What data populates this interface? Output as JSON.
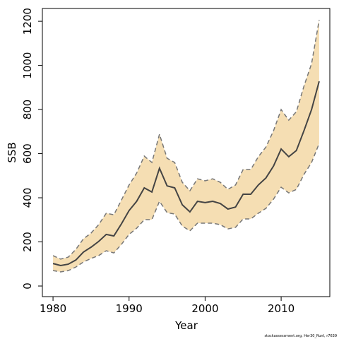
{
  "chart_data": {
    "type": "line",
    "x_label": "Year",
    "y_label": "SSB",
    "footer": "stockassessment.org, Her30_RunI, r7639",
    "x": [
      1980,
      1981,
      1982,
      1983,
      1984,
      1985,
      1986,
      1987,
      1988,
      1989,
      1990,
      1991,
      1992,
      1993,
      1994,
      1995,
      1996,
      1997,
      1998,
      1999,
      2000,
      2001,
      2002,
      2003,
      2004,
      2005,
      2006,
      2007,
      2008,
      2009,
      2010,
      2011,
      2012,
      2013,
      2014,
      2015
    ],
    "values": [
      102,
      93,
      99,
      118,
      154,
      176,
      202,
      234,
      227,
      282,
      342,
      384,
      445,
      426,
      534,
      454,
      445,
      368,
      336,
      384,
      378,
      384,
      374,
      349,
      358,
      416,
      416,
      458,
      490,
      544,
      621,
      586,
      614,
      704,
      800,
      928
    ],
    "upper": [
      138,
      122,
      131,
      166,
      214,
      240,
      278,
      330,
      323,
      390,
      458,
      512,
      589,
      560,
      688,
      579,
      560,
      470,
      432,
      486,
      477,
      486,
      470,
      438,
      458,
      528,
      528,
      586,
      630,
      704,
      800,
      752,
      790,
      906,
      1008,
      1206
    ],
    "lower": [
      70,
      64,
      70,
      86,
      109,
      125,
      138,
      160,
      150,
      189,
      234,
      262,
      301,
      301,
      384,
      333,
      326,
      272,
      250,
      285,
      285,
      285,
      278,
      259,
      266,
      304,
      304,
      330,
      352,
      394,
      448,
      422,
      438,
      506,
      560,
      646
    ],
    "color": "#444444",
    "band_color": "#f5deb3",
    "band_edge_color": "#777777",
    "xlim": [
      1978.6,
      2016.4
    ],
    "ylim": [
      -48,
      1258
    ],
    "xticks": [
      1980,
      1990,
      2000,
      2010
    ],
    "yticks": [
      0,
      200,
      400,
      600,
      800,
      1000,
      1200
    ]
  }
}
